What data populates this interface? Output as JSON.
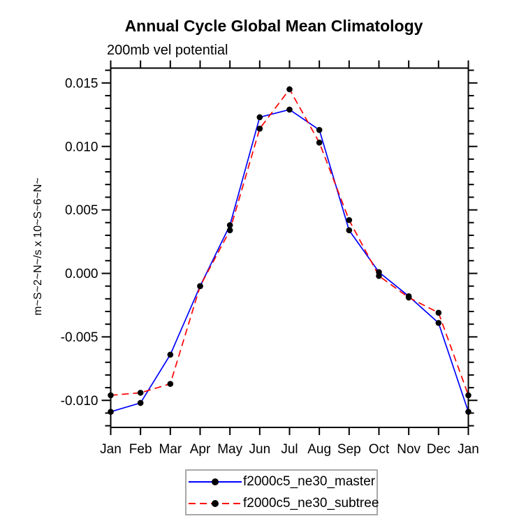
{
  "title": "Annual Cycle Global Mean Climatology",
  "subtitle": "200mb vel potential",
  "y_axis_label": "m~S~2~N~/s x 10~S~6~N~",
  "colors": {
    "axis": "#000000",
    "marker": "#000000",
    "master_line": "#0000ff",
    "subtree_line": "#ff0000",
    "legend_border": "#a8a8a8"
  },
  "legend": {
    "items": [
      {
        "label": "f2000c5_ne30_master",
        "line_style": "solid"
      },
      {
        "label": "f2000c5_ne30_subtree",
        "line_style": "dashed"
      }
    ]
  },
  "chart_data": {
    "type": "line",
    "title": "Annual Cycle Global Mean Climatology",
    "subtitle": "200mb vel potential",
    "xlabel": "",
    "ylabel": "m~S~2~N~/s x 10~S~6~N~",
    "categories": [
      "Jan",
      "Feb",
      "Mar",
      "Apr",
      "May",
      "Jun",
      "Jul",
      "Aug",
      "Sep",
      "Oct",
      "Nov",
      "Dec",
      "Jan"
    ],
    "series": [
      {
        "name": "f2000c5_ne30_master",
        "color": "#0000ff",
        "style": "solid",
        "marker": "circle",
        "values": [
          -0.0109,
          -0.0102,
          -0.0064,
          -0.001,
          0.0038,
          0.0123,
          0.0129,
          0.0113,
          0.0034,
          0.0001,
          -0.0018,
          -0.0039,
          -0.0109
        ]
      },
      {
        "name": "f2000c5_ne30_subtree",
        "color": "#ff0000",
        "style": "dashed",
        "marker": "circle",
        "values": [
          -0.0096,
          -0.0094,
          -0.0087,
          -0.001,
          0.0034,
          0.0114,
          0.0145,
          0.0103,
          0.0042,
          -0.0002,
          -0.0019,
          -0.0031,
          -0.0096
        ]
      }
    ],
    "ylim": [
      -0.01213,
      0.01617
    ],
    "yticks_major": [
      -0.01,
      -0.005,
      0.0,
      0.005,
      0.01,
      0.015
    ],
    "ytick_labels": [
      "-0.010",
      "-0.005",
      "0.000",
      "0.005",
      "0.010",
      "0.015"
    ],
    "y_minor_interval": 0.001,
    "grid": false,
    "legend_position": "bottom-center"
  }
}
